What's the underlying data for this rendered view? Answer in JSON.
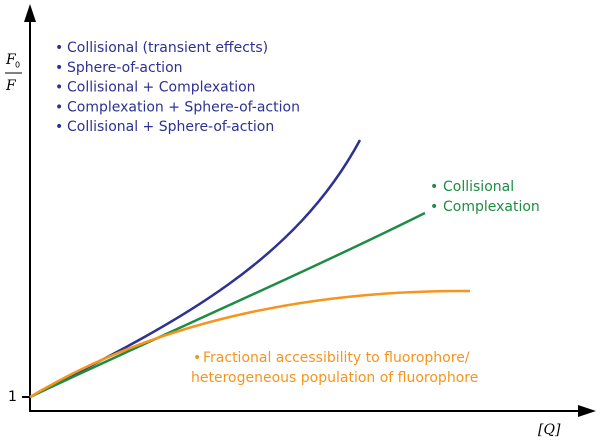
{
  "axes": {
    "y_label": {
      "numerator": "F",
      "subscript": "0",
      "denominator": "F"
    },
    "x_label": "[Q]",
    "y_origin_label": "1"
  },
  "blue_group": [
    "Collisional (transient effects)",
    "Sphere-of-action",
    "Collisional + Complexation",
    "Complexation + Sphere-of-action",
    "Collisional + Sphere-of-action"
  ],
  "green_group": [
    "Collisional",
    "Complexation"
  ],
  "orange_group": [
    "Fractional accessibility to fluorophore/",
    "heterogeneous population of fluorophore"
  ]
}
